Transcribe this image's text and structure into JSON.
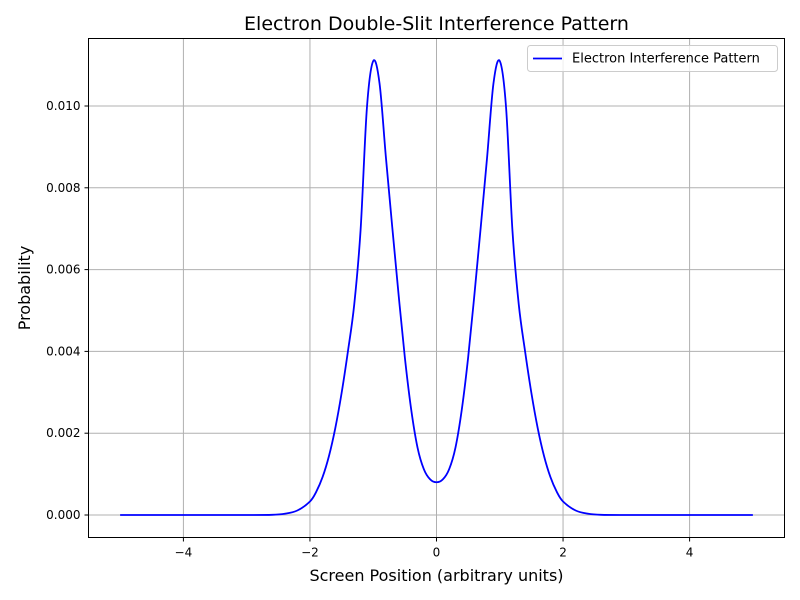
{
  "chart_data": {
    "type": "line",
    "title": "Electron Double-Slit Interference Pattern",
    "xlabel": "Screen Position (arbitrary units)",
    "ylabel": "Probability",
    "xlim": [
      -5.5,
      5.5
    ],
    "ylim": [
      -0.00055,
      0.01165
    ],
    "xticks": [
      -4,
      -2,
      0,
      2,
      4
    ],
    "xtick_labels": [
      "−4",
      "−2",
      "0",
      "2",
      "4"
    ],
    "yticks": [
      0.0,
      0.002,
      0.004,
      0.006,
      0.008,
      0.01
    ],
    "ytick_labels": [
      "0.000",
      "0.002",
      "0.004",
      "0.006",
      "0.008",
      "0.010"
    ],
    "grid": true,
    "legend_position": "top-right",
    "series": [
      {
        "name": "Electron Interference Pattern",
        "color": "#0000ff",
        "x": [
          -5.0,
          -4.0,
          -3.0,
          -2.6,
          -2.4,
          -2.2,
          -2.0,
          -1.9,
          -1.8,
          -1.7,
          -1.6,
          -1.5,
          -1.4,
          -1.3,
          -1.2,
          -1.1,
          -1.0,
          -0.9,
          -0.8,
          -0.7,
          -0.6,
          -0.5,
          -0.4,
          -0.3,
          -0.2,
          -0.1,
          0.0,
          0.1,
          0.2,
          0.3,
          0.4,
          0.5,
          0.6,
          0.7,
          0.8,
          0.9,
          1.0,
          1.1,
          1.2,
          1.3,
          1.4,
          1.5,
          1.6,
          1.7,
          1.8,
          1.9,
          2.0,
          2.2,
          2.4,
          2.6,
          3.0,
          4.0,
          5.0
        ],
        "y": [
          0.0,
          0.0,
          0.0,
          5e-06,
          3e-05,
          0.00011,
          0.00033,
          0.00057,
          0.00093,
          0.00144,
          0.00212,
          0.00298,
          0.004,
          0.00515,
          0.00696,
          0.00995,
          0.0111,
          0.01055,
          0.00875,
          0.00705,
          0.0054,
          0.00385,
          0.00258,
          0.00165,
          0.00112,
          0.00087,
          0.0008,
          0.00087,
          0.00112,
          0.00165,
          0.00258,
          0.00385,
          0.0054,
          0.00705,
          0.00875,
          0.01055,
          0.0111,
          0.00995,
          0.00696,
          0.00515,
          0.004,
          0.00298,
          0.00212,
          0.00144,
          0.00093,
          0.00057,
          0.00033,
          0.00011,
          3e-05,
          5e-06,
          0.0,
          0.0,
          0.0
        ]
      }
    ]
  }
}
